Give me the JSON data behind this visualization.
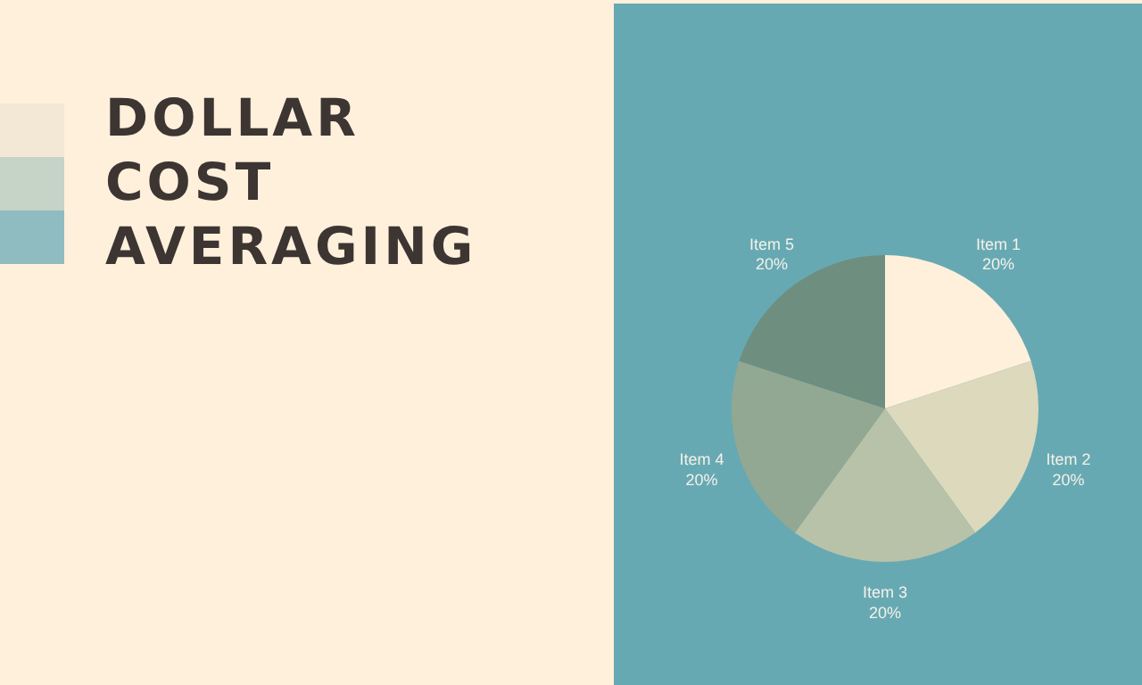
{
  "chart_data": {
    "type": "pie",
    "title": "DOLLAR COST AVERAGING",
    "categories": [
      "Item 1",
      "Item 2",
      "Item 3",
      "Item 4",
      "Item 5"
    ],
    "values": [
      20,
      20,
      20,
      20,
      20
    ],
    "colors": [
      "#fff0dc",
      "#dcd9bd",
      "#b8c2a8",
      "#93a892",
      "#6e8e80"
    ],
    "value_labels": [
      "20%",
      "20%",
      "20%",
      "20%",
      "20%"
    ]
  }
}
